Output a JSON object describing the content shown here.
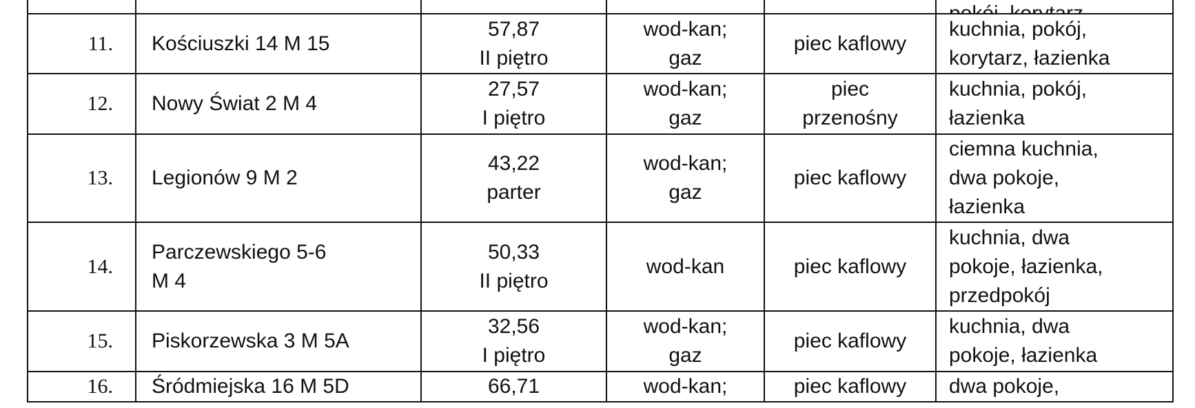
{
  "partial_row_top": {
    "rooms": "pokój, korytarz"
  },
  "rows": [
    {
      "no": "11.",
      "address": [
        "Kościuszki 14 M 15"
      ],
      "area": [
        "57,87",
        "II piętro"
      ],
      "utilities": [
        "wod-kan;",
        "gaz"
      ],
      "heating": [
        "piec kaflowy"
      ],
      "rooms": [
        "kuchnia, pokój,",
        "korytarz, łazienka"
      ]
    },
    {
      "no": "12.",
      "address": [
        "Nowy Świat 2 M 4"
      ],
      "area": [
        "27,57",
        "I piętro"
      ],
      "utilities": [
        "wod-kan;",
        "gaz"
      ],
      "heating": [
        "piec",
        "przenośny"
      ],
      "rooms": [
        "kuchnia, pokój,",
        "łazienka"
      ]
    },
    {
      "no": "13.",
      "address": [
        "Legionów 9 M 2"
      ],
      "area": [
        "43,22",
        "parter"
      ],
      "utilities": [
        "wod-kan;",
        "gaz"
      ],
      "heating": [
        "piec kaflowy"
      ],
      "rooms": [
        "ciemna kuchnia,",
        "dwa pokoje,",
        "łazienka"
      ]
    },
    {
      "no": "14.",
      "address": [
        "Parczewskiego 5-6",
        "M 4"
      ],
      "area": [
        "50,33",
        "II  piętro"
      ],
      "utilities": [
        "wod-kan"
      ],
      "heating": [
        "piec kaflowy"
      ],
      "rooms": [
        "kuchnia, dwa",
        "pokoje, łazienka,",
        "przedpokój"
      ]
    },
    {
      "no": "15.",
      "address": [
        "Piskorzewska 3 M 5A"
      ],
      "area": [
        "32,56",
        "I piętro"
      ],
      "utilities": [
        "wod-kan;",
        "gaz"
      ],
      "heating": [
        "piec kaflowy"
      ],
      "rooms": [
        "kuchnia, dwa",
        "pokoje, łazienka"
      ]
    },
    {
      "no": "16.",
      "address": [
        "Śródmiejska 16 M 5D"
      ],
      "area": [
        "66,71"
      ],
      "utilities": [
        "wod-kan;"
      ],
      "heating": [
        "piec kaflowy"
      ],
      "rooms": [
        "dwa pokoje,"
      ]
    }
  ]
}
